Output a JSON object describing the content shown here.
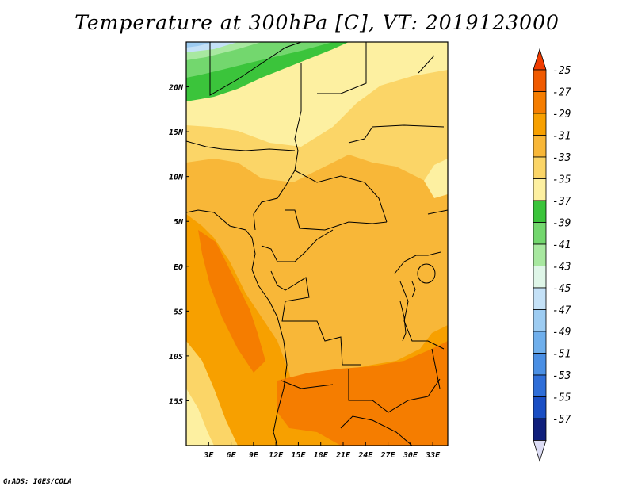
{
  "title": "Temperature at 300hPa [C], VT: 2019123000",
  "credit": "GrADS: IGES/COLA",
  "map": {
    "region": "Central Africa",
    "lon_range": [
      0,
      35
    ],
    "lat_range": [
      -20,
      25
    ],
    "x_ticks": [
      "3E",
      "6E",
      "9E",
      "12E",
      "15E",
      "18E",
      "21E",
      "24E",
      "27E",
      "30E",
      "33E"
    ],
    "y_ticks": [
      "20N",
      "15N",
      "10N",
      "5N",
      "EQ",
      "5S",
      "10S",
      "15S"
    ]
  },
  "colorbar": {
    "labels": [
      "-25",
      "-27",
      "-29",
      "-31",
      "-33",
      "-35",
      "-37",
      "-39",
      "-41",
      "-43",
      "-45",
      "-47",
      "-49",
      "-51",
      "-53",
      "-55",
      "-57"
    ],
    "colors": [
      "#f05a00",
      "#f57d00",
      "#f7a000",
      "#f8b738",
      "#fbd567",
      "#fdf0a1",
      "#3bc43b",
      "#73d76e",
      "#a8e8a0",
      "#dff6e8",
      "#c4e1f7",
      "#9dccf2",
      "#6fafec",
      "#4a8fe4",
      "#2f6ed8",
      "#1a4ec4",
      "#0f1f7c"
    ],
    "top_color": "#f03c00",
    "bottom_color": "#dcdcf4"
  }
}
